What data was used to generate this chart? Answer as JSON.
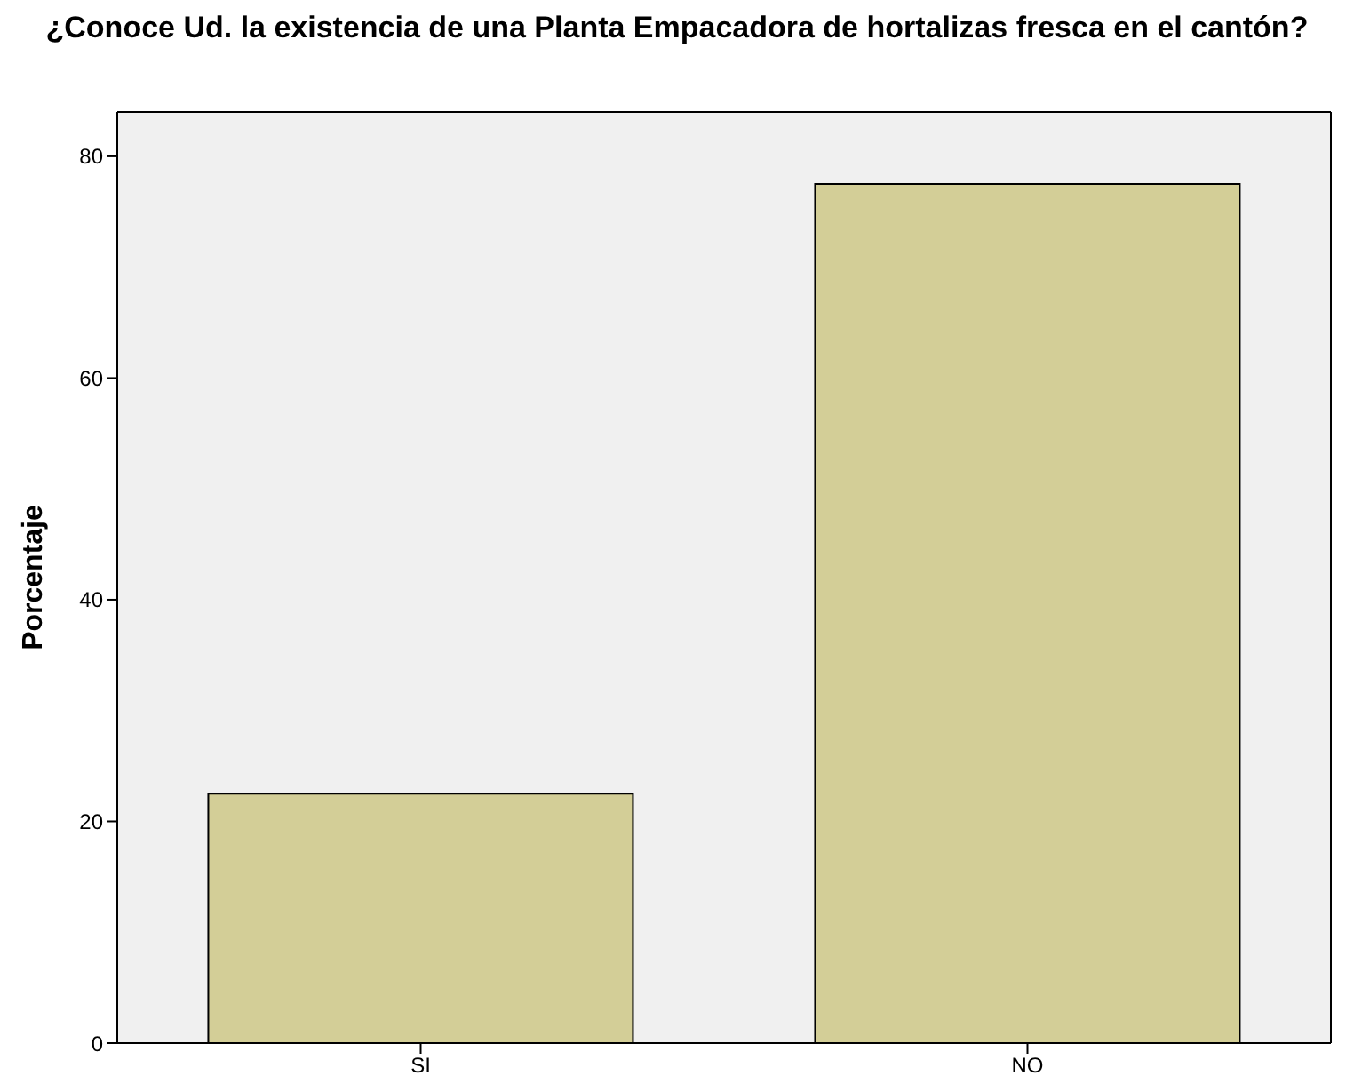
{
  "chart_data": {
    "type": "bar",
    "title": "¿Conoce Ud. la existencia de una Planta Empacadora de hortalizas fresca en el cantón?",
    "ylabel": "Porcentaje",
    "categories": [
      "SI",
      "NO"
    ],
    "values": [
      22.5,
      77.5
    ],
    "color": "#d3ce97",
    "ylim": [
      0,
      84
    ],
    "yticks": [
      0,
      20,
      40,
      60,
      80
    ],
    "grid": false
  }
}
